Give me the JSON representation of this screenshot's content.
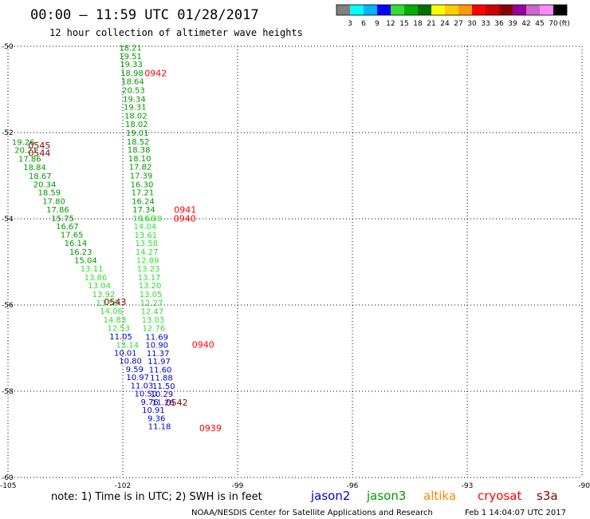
{
  "header": {
    "title": "00:00 — 11:59 UTC 01/28/2017",
    "subtitle": "12 hour collection of altimeter wave heights"
  },
  "color_scale": {
    "labels": [
      "3",
      "6",
      "9",
      "12",
      "15",
      "18",
      "21",
      "24",
      "27",
      "30",
      "33",
      "36",
      "39",
      "42",
      "45",
      "70",
      "(ft)"
    ],
    "colors": [
      "#808080",
      "#00ffff",
      "#00b4ff",
      "#0000ff",
      "#33dd33",
      "#00b000",
      "#007000",
      "#ffff00",
      "#ffcc00",
      "#ff9900",
      "#ff0000",
      "#cc0000",
      "#880000",
      "#990099",
      "#cc66cc",
      "#ff88ff",
      "#000000"
    ]
  },
  "footer": {
    "note": "note: 1) Time is in UTC; 2) SWH is in feet",
    "satellites": [
      {
        "name": "jason2",
        "color": "#0000cc"
      },
      {
        "name": "jason3",
        "color": "#009900"
      },
      {
        "name": "altika",
        "color": "#ff8800"
      },
      {
        "name": "cryosat",
        "color": "#ff0000"
      },
      {
        "name": "s3a",
        "color": "#880000"
      }
    ],
    "credit": "NOAA/NESDIS Center for Satellite Applications and Research",
    "timestamp": "Feb  1 14:04:07 UTC 2017"
  },
  "chart_data": {
    "type": "scatter",
    "title": "00:00 — 11:59 UTC 01/28/2017",
    "subtitle": "12 hour collection of altimeter wave heights",
    "xlim": [
      -105,
      -90
    ],
    "ylim": [
      -60,
      -50
    ],
    "x_ticks": [
      -105,
      -102,
      -99,
      -96,
      -93,
      -90
    ],
    "y_ticks": [
      -50,
      -52,
      -54,
      -56,
      -58,
      -60
    ],
    "x_tick_labels": [
      "-105",
      "-102",
      "-99",
      "-96",
      "-93",
      "-90"
    ],
    "y_tick_labels": [
      "-50",
      "-52",
      "-54",
      "-56",
      "-58",
      "-60"
    ],
    "grid": true,
    "series": [
      {
        "name": "jason3",
        "color": "#009900",
        "points": [
          {
            "lon": -101.8,
            "lat": -50.03,
            "swh": "18.21"
          },
          {
            "lon": -101.8,
            "lat": -50.22,
            "swh": "19.51"
          },
          {
            "lon": -101.78,
            "lat": -50.41,
            "swh": "19.33"
          },
          {
            "lon": -101.76,
            "lat": -50.61,
            "swh": "18.98"
          },
          {
            "lon": -101.74,
            "lat": -50.81,
            "swh": "18.64"
          },
          {
            "lon": -101.72,
            "lat": -51.01,
            "swh": "20.53"
          },
          {
            "lon": -101.7,
            "lat": -51.21,
            "swh": "19.34"
          },
          {
            "lon": -101.68,
            "lat": -51.4,
            "swh": "19.31"
          },
          {
            "lon": -101.66,
            "lat": -51.6,
            "swh": "18.02"
          },
          {
            "lon": -101.64,
            "lat": -51.8,
            "swh": "18.02"
          },
          {
            "lon": -101.62,
            "lat": -52.0,
            "swh": "19.01"
          },
          {
            "lon": -101.6,
            "lat": -52.2,
            "swh": "18.52"
          },
          {
            "lon": -101.58,
            "lat": -52.39,
            "swh": "18.38"
          },
          {
            "lon": -101.56,
            "lat": -52.59,
            "swh": "18.10"
          },
          {
            "lon": -101.54,
            "lat": -52.79,
            "swh": "17.82"
          },
          {
            "lon": -101.52,
            "lat": -52.99,
            "swh": "17.39"
          },
          {
            "lon": -101.5,
            "lat": -53.19,
            "swh": "16.30"
          },
          {
            "lon": -101.48,
            "lat": -53.38,
            "swh": "17.21"
          },
          {
            "lon": -101.47,
            "lat": -53.58,
            "swh": "16.24"
          },
          {
            "lon": -101.45,
            "lat": -53.78,
            "swh": "17.34"
          },
          {
            "lon": -104.6,
            "lat": -52.21,
            "swh": "19.26"
          },
          {
            "lon": -104.53,
            "lat": -52.4,
            "swh": "20.21"
          },
          {
            "lon": -104.43,
            "lat": -52.6,
            "swh": "17.86"
          },
          {
            "lon": -104.3,
            "lat": -52.8,
            "swh": "18.84"
          },
          {
            "lon": -104.16,
            "lat": -53.0,
            "swh": "18.67"
          },
          {
            "lon": -104.04,
            "lat": -53.19,
            "swh": "20.34"
          },
          {
            "lon": -103.92,
            "lat": -53.38,
            "swh": "18.59"
          },
          {
            "lon": -103.8,
            "lat": -53.58,
            "swh": "17.80"
          },
          {
            "lon": -103.7,
            "lat": -53.78,
            "swh": "17.86"
          },
          {
            "lon": -103.57,
            "lat": -53.98,
            "swh": "15.75"
          },
          {
            "lon": -103.45,
            "lat": -54.17,
            "swh": "16.67"
          },
          {
            "lon": -103.33,
            "lat": -54.36,
            "swh": "17.65"
          },
          {
            "lon": -103.23,
            "lat": -54.56,
            "swh": "16.14"
          },
          {
            "lon": -103.1,
            "lat": -54.76,
            "swh": "16.23"
          },
          {
            "lon": -102.97,
            "lat": -54.95,
            "swh": "15.04"
          }
        ]
      },
      {
        "name": "jason3 (lighter)",
        "color": "#33dd33",
        "points": [
          {
            "lon": -101.45,
            "lat": -53.98,
            "swh": "16.66"
          },
          {
            "lon": -101.42,
            "lat": -54.17,
            "swh": "14.04"
          },
          {
            "lon": -101.4,
            "lat": -54.37,
            "swh": "13.61"
          },
          {
            "lon": -101.38,
            "lat": -54.56,
            "swh": "13.58"
          },
          {
            "lon": -101.37,
            "lat": -54.76,
            "swh": "14.27"
          },
          {
            "lon": -101.35,
            "lat": -54.95,
            "swh": "12.89"
          },
          {
            "lon": -101.33,
            "lat": -55.15,
            "swh": "13.23"
          },
          {
            "lon": -101.31,
            "lat": -55.35,
            "swh": "13.17"
          },
          {
            "lon": -101.29,
            "lat": -55.54,
            "swh": "13.20"
          },
          {
            "lon": -101.27,
            "lat": -55.74,
            "swh": "13.05"
          },
          {
            "lon": -101.25,
            "lat": -55.94,
            "swh": "12.27"
          },
          {
            "lon": -101.23,
            "lat": -56.14,
            "swh": "12.47"
          },
          {
            "lon": -101.21,
            "lat": -56.33,
            "swh": "13.03"
          },
          {
            "lon": -101.19,
            "lat": -56.53,
            "swh": "12.76"
          },
          {
            "lon": -101.27,
            "lat": -53.98,
            "swh": "16.38"
          },
          {
            "lon": -102.81,
            "lat": -55.15,
            "swh": "13.11"
          },
          {
            "lon": -102.71,
            "lat": -55.35,
            "swh": "13.86"
          },
          {
            "lon": -102.61,
            "lat": -55.54,
            "swh": "13.04"
          },
          {
            "lon": -102.5,
            "lat": -55.74,
            "swh": "13.92"
          },
          {
            "lon": -102.4,
            "lat": -55.94,
            "swh": "13.50"
          },
          {
            "lon": -102.3,
            "lat": -56.13,
            "swh": "14.06"
          },
          {
            "lon": -102.21,
            "lat": -56.33,
            "swh": "14.83"
          },
          {
            "lon": -102.11,
            "lat": -56.53,
            "swh": "12.53"
          },
          {
            "lon": -101.88,
            "lat": -56.92,
            "swh": "13.14"
          }
        ]
      },
      {
        "name": "jason2",
        "color": "#0000cc",
        "points": [
          {
            "lon": -102.05,
            "lat": -56.72,
            "swh": "11.05"
          },
          {
            "lon": -101.93,
            "lat": -57.1,
            "swh": "10.01"
          },
          {
            "lon": -101.8,
            "lat": -57.29,
            "swh": "10.80"
          },
          {
            "lon": -101.69,
            "lat": -57.48,
            "swh": "9.59"
          },
          {
            "lon": -101.61,
            "lat": -57.67,
            "swh": "10.97"
          },
          {
            "lon": -101.5,
            "lat": -57.86,
            "swh": "11.03"
          },
          {
            "lon": -101.4,
            "lat": -58.05,
            "swh": "10.50"
          },
          {
            "lon": -101.3,
            "lat": -58.24,
            "swh": "9.76"
          },
          {
            "lon": -101.2,
            "lat": -58.43,
            "swh": "10.91"
          },
          {
            "lon": -101.12,
            "lat": -58.62,
            "swh": "9.36"
          },
          {
            "lon": -101.04,
            "lat": -58.81,
            "swh": "11.18"
          },
          {
            "lon": -101.11,
            "lat": -56.73,
            "swh": "11.69"
          },
          {
            "lon": -101.11,
            "lat": -56.92,
            "swh": "10.90"
          },
          {
            "lon": -101.08,
            "lat": -57.11,
            "swh": "11.37"
          },
          {
            "lon": -101.05,
            "lat": -57.3,
            "swh": "11.97"
          },
          {
            "lon": -101.02,
            "lat": -57.49,
            "swh": "11.60"
          },
          {
            "lon": -100.99,
            "lat": -57.68,
            "swh": "11.88"
          },
          {
            "lon": -100.93,
            "lat": -57.87,
            "swh": "11.50"
          },
          {
            "lon": -100.98,
            "lat": -58.06,
            "swh": "10.29"
          },
          {
            "lon": -100.95,
            "lat": -58.25,
            "swh": "11.26"
          }
        ]
      },
      {
        "name": "cryosat",
        "color": "#ff0000",
        "points": [
          {
            "lon": -101.14,
            "lat": -50.62,
            "pass": "0942"
          },
          {
            "lon": -100.37,
            "lat": -53.79,
            "pass": "0941"
          },
          {
            "lon": -100.38,
            "lat": -53.99,
            "pass": "0940"
          },
          {
            "lon": -99.9,
            "lat": -56.92,
            "pass": "0940"
          },
          {
            "lon": -99.71,
            "lat": -58.85,
            "pass": "0939"
          }
        ]
      },
      {
        "name": "s3a",
        "color": "#880000",
        "points": [
          {
            "lon": -104.18,
            "lat": -52.3,
            "pass": "0545"
          },
          {
            "lon": -104.18,
            "lat": -52.47,
            "pass": "0544"
          },
          {
            "lon": -102.2,
            "lat": -55.93,
            "pass": "0543"
          },
          {
            "lon": -100.59,
            "lat": -58.26,
            "pass": "0542"
          }
        ]
      }
    ]
  }
}
